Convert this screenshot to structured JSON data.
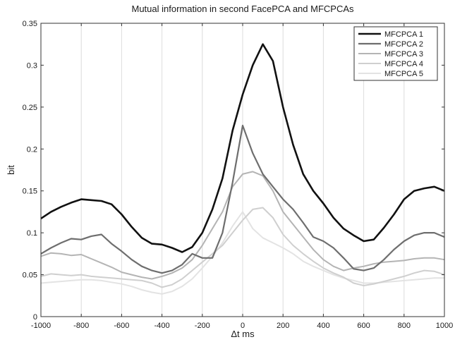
{
  "chart_data": {
    "type": "line",
    "title": "Mutual information in second FacePCA and MFCPCAs",
    "xlabel": "Δt ms",
    "ylabel": "bit",
    "xlim": [
      -1000,
      1000
    ],
    "ylim": [
      0,
      0.35
    ],
    "xticks": [
      -1000,
      -800,
      -600,
      -400,
      -200,
      0,
      200,
      400,
      600,
      800,
      1000
    ],
    "yticks": [
      0,
      0.05,
      0.1,
      0.15,
      0.2,
      0.25,
      0.3,
      0.35
    ],
    "ytick_labels": [
      "0",
      "0.05",
      "0.1",
      "0.15",
      "0.2",
      "0.25",
      "0.3",
      "0.35"
    ],
    "grid": "vertical",
    "legend_position": "top-right",
    "series": [
      {
        "name": "MFCPCA 1",
        "color": "#111111",
        "x": [
          -1000,
          -950,
          -900,
          -850,
          -800,
          -750,
          -700,
          -650,
          -600,
          -550,
          -500,
          -450,
          -400,
          -350,
          -300,
          -250,
          -200,
          -150,
          -100,
          -50,
          0,
          50,
          100,
          150,
          200,
          250,
          300,
          350,
          400,
          450,
          500,
          550,
          600,
          650,
          700,
          750,
          800,
          850,
          900,
          950,
          1000
        ],
        "values": [
          0.117,
          0.125,
          0.131,
          0.136,
          0.14,
          0.139,
          0.138,
          0.134,
          0.122,
          0.107,
          0.094,
          0.087,
          0.086,
          0.082,
          0.077,
          0.083,
          0.1,
          0.128,
          0.165,
          0.222,
          0.265,
          0.3,
          0.325,
          0.305,
          0.25,
          0.205,
          0.17,
          0.15,
          0.135,
          0.118,
          0.105,
          0.097,
          0.09,
          0.092,
          0.106,
          0.122,
          0.14,
          0.15,
          0.153,
          0.155,
          0.15
        ]
      },
      {
        "name": "MFCPCA 2",
        "color": "#6e6e6e",
        "x": [
          -1000,
          -950,
          -900,
          -850,
          -800,
          -750,
          -700,
          -650,
          -600,
          -550,
          -500,
          -450,
          -400,
          -350,
          -300,
          -250,
          -200,
          -150,
          -100,
          -50,
          0,
          50,
          100,
          150,
          200,
          250,
          300,
          350,
          400,
          450,
          500,
          550,
          600,
          650,
          700,
          750,
          800,
          850,
          900,
          950,
          1000
        ],
        "values": [
          0.075,
          0.082,
          0.088,
          0.093,
          0.092,
          0.096,
          0.098,
          0.087,
          0.078,
          0.068,
          0.06,
          0.055,
          0.052,
          0.055,
          0.062,
          0.075,
          0.07,
          0.07,
          0.1,
          0.16,
          0.228,
          0.195,
          0.17,
          0.155,
          0.14,
          0.128,
          0.112,
          0.095,
          0.09,
          0.082,
          0.07,
          0.057,
          0.055,
          0.058,
          0.068,
          0.08,
          0.09,
          0.097,
          0.1,
          0.1,
          0.095
        ]
      },
      {
        "name": "MFCPCA 3",
        "color": "#b4b4b4",
        "x": [
          -1000,
          -950,
          -900,
          -850,
          -800,
          -750,
          -700,
          -650,
          -600,
          -550,
          -500,
          -450,
          -400,
          -350,
          -300,
          -250,
          -200,
          -150,
          -100,
          -50,
          0,
          50,
          100,
          150,
          200,
          250,
          300,
          350,
          400,
          450,
          500,
          550,
          600,
          650,
          700,
          750,
          800,
          850,
          900,
          950,
          1000
        ],
        "values": [
          0.072,
          0.076,
          0.075,
          0.073,
          0.074,
          0.069,
          0.064,
          0.059,
          0.053,
          0.05,
          0.047,
          0.045,
          0.048,
          0.052,
          0.058,
          0.068,
          0.085,
          0.105,
          0.125,
          0.155,
          0.17,
          0.173,
          0.168,
          0.15,
          0.125,
          0.11,
          0.095,
          0.08,
          0.068,
          0.06,
          0.055,
          0.058,
          0.06,
          0.063,
          0.065,
          0.066,
          0.067,
          0.069,
          0.07,
          0.07,
          0.068
        ]
      },
      {
        "name": "MFCPCA 4",
        "color": "#cfcfcf",
        "x": [
          -1000,
          -950,
          -900,
          -850,
          -800,
          -750,
          -700,
          -650,
          -600,
          -550,
          -500,
          -450,
          -400,
          -350,
          -300,
          -250,
          -200,
          -150,
          -100,
          -50,
          0,
          50,
          100,
          150,
          200,
          250,
          300,
          350,
          400,
          450,
          500,
          550,
          600,
          650,
          700,
          750,
          800,
          850,
          900,
          950,
          1000
        ],
        "values": [
          0.048,
          0.051,
          0.05,
          0.049,
          0.05,
          0.048,
          0.047,
          0.046,
          0.045,
          0.044,
          0.043,
          0.04,
          0.035,
          0.038,
          0.045,
          0.055,
          0.065,
          0.075,
          0.085,
          0.1,
          0.115,
          0.128,
          0.13,
          0.118,
          0.098,
          0.085,
          0.075,
          0.066,
          0.058,
          0.052,
          0.047,
          0.04,
          0.037,
          0.039,
          0.042,
          0.045,
          0.048,
          0.052,
          0.055,
          0.054,
          0.05
        ]
      },
      {
        "name": "MFCPCA 5",
        "color": "#e3e3e3",
        "x": [
          -1000,
          -950,
          -900,
          -850,
          -800,
          -750,
          -700,
          -650,
          -600,
          -550,
          -500,
          -450,
          -400,
          -350,
          -300,
          -250,
          -200,
          -150,
          -100,
          -50,
          0,
          50,
          100,
          150,
          200,
          250,
          300,
          350,
          400,
          450,
          500,
          550,
          600,
          650,
          700,
          750,
          800,
          850,
          900,
          950,
          1000
        ],
        "values": [
          0.04,
          0.041,
          0.042,
          0.043,
          0.044,
          0.044,
          0.043,
          0.041,
          0.039,
          0.036,
          0.032,
          0.029,
          0.027,
          0.03,
          0.036,
          0.045,
          0.058,
          0.072,
          0.088,
          0.108,
          0.125,
          0.105,
          0.094,
          0.088,
          0.082,
          0.075,
          0.066,
          0.06,
          0.055,
          0.05,
          0.046,
          0.043,
          0.04,
          0.04,
          0.041,
          0.042,
          0.043,
          0.044,
          0.045,
          0.046,
          0.046
        ]
      }
    ]
  }
}
